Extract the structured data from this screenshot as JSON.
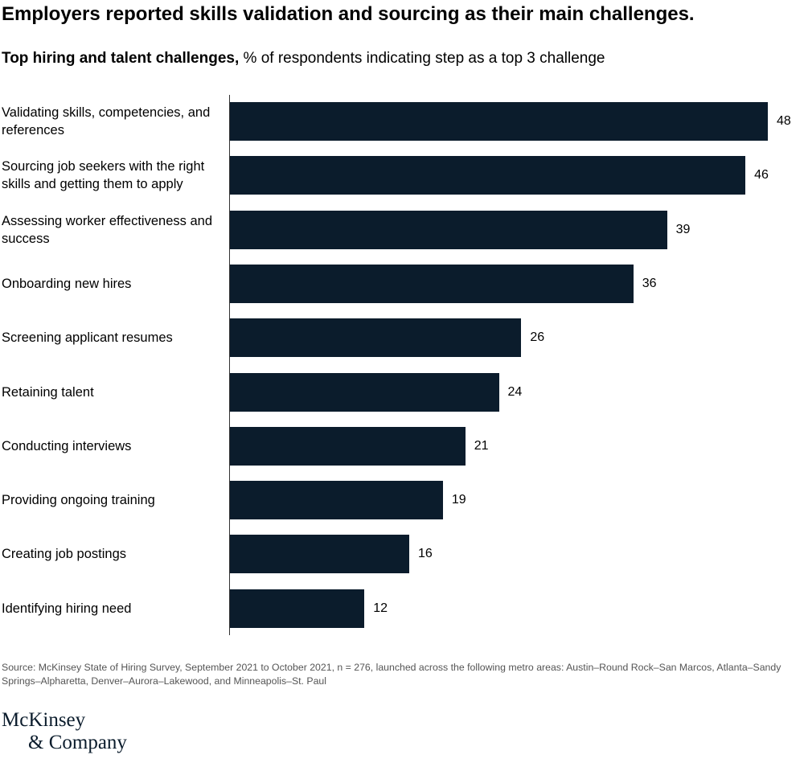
{
  "chart_data": {
    "type": "bar",
    "orientation": "horizontal",
    "title": "Employers reported skills validation and sourcing as their main challenges.",
    "subtitle_bold": "Top hiring and talent challenges,",
    "subtitle": "% of respondents indicating step as a top 3 challenge",
    "categories": [
      "Validating skills, competencies, and references",
      "Sourcing job seekers with the right skills and getting them to apply",
      "Assessing worker effectiveness and success",
      "Onboarding new hires",
      "Screening applicant resumes",
      "Retaining talent",
      "Conducting interviews",
      "Providing ongoing training",
      "Creating job postings",
      "Identifying hiring need"
    ],
    "values": [
      48,
      46,
      39,
      36,
      26,
      24,
      21,
      19,
      16,
      12
    ],
    "color": "#0b1c2c",
    "source": "Source: McKinsey State of Hiring Survey, September 2021 to October 2021, n = 276, launched across the following metro areas: Austin–Round Rock–San Marcos, Atlanta–Sandy Springs–Alpharetta, Denver–Aurora–Lakewood, and Minneapolis–St. Paul",
    "logo": [
      "McKinsey",
      "& Company"
    ]
  }
}
